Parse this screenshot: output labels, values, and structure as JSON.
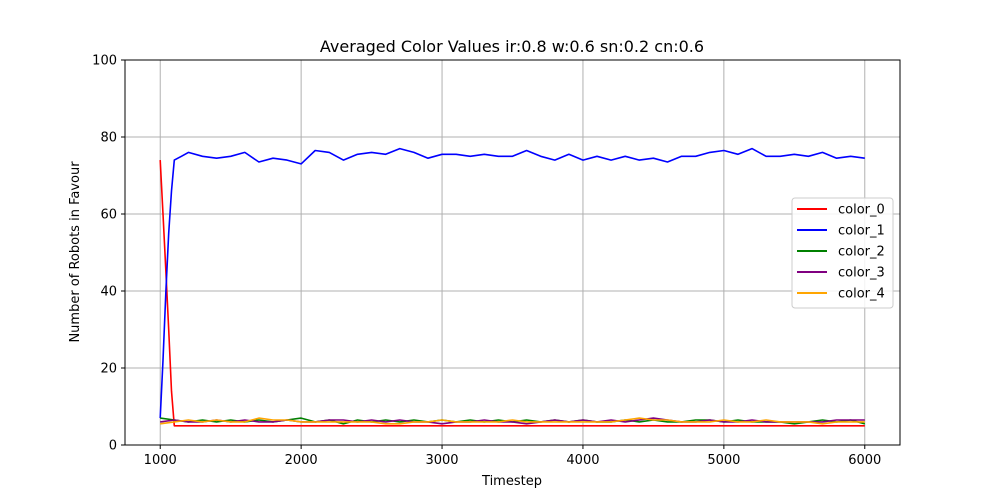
{
  "chart_data": {
    "type": "line",
    "title": "Averaged Color Values ir:0.8 w:0.6 sn:0.2 cn:0.6",
    "xlabel": "Timestep",
    "ylabel": "Number of Robots in Favour",
    "xlim": [
      750,
      6250
    ],
    "ylim": [
      0,
      100
    ],
    "xticks": [
      1000,
      2000,
      3000,
      4000,
      5000,
      6000
    ],
    "yticks": [
      0,
      20,
      40,
      60,
      80,
      100
    ],
    "grid": true,
    "legend_position": "center-right",
    "series": [
      {
        "name": "color_0",
        "color": "#ff0000",
        "x": [
          1000,
          1020,
          1040,
          1060,
          1080,
          1100,
          6000
        ],
        "y": [
          74,
          60,
          45,
          30,
          14,
          5,
          5
        ]
      },
      {
        "name": "color_1",
        "color": "#0000ff",
        "x": [
          1000,
          1020,
          1040,
          1060,
          1080,
          1100,
          1150,
          1200,
          1300,
          1400,
          1500,
          1600,
          1700,
          1800,
          1900,
          2000,
          2100,
          2200,
          2300,
          2400,
          2500,
          2600,
          2700,
          2800,
          2900,
          3000,
          3100,
          3200,
          3300,
          3400,
          3500,
          3600,
          3700,
          3800,
          3900,
          4000,
          4100,
          4200,
          4300,
          4400,
          4500,
          4600,
          4700,
          4800,
          4900,
          5000,
          5100,
          5200,
          5300,
          5400,
          5500,
          5600,
          5700,
          5800,
          5900,
          6000
        ],
        "y": [
          7,
          22,
          40,
          55,
          66,
          74,
          75,
          76,
          75,
          74.5,
          75,
          76,
          73.5,
          74.5,
          74,
          73,
          76.5,
          76,
          74,
          75.5,
          76,
          75.5,
          77,
          76,
          74.5,
          75.5,
          75.5,
          75,
          75.5,
          75,
          75,
          76.5,
          75,
          74,
          75.5,
          74,
          75,
          74,
          75,
          74,
          74.5,
          73.5,
          75,
          75,
          76,
          76.5,
          75.5,
          77,
          75,
          75,
          75.5,
          75,
          76,
          74.5,
          75,
          74.5
        ]
      },
      {
        "name": "color_2",
        "color": "#008000",
        "x": [
          1000,
          1100,
          1200,
          1300,
          1400,
          1500,
          1600,
          1700,
          1800,
          1900,
          2000,
          2100,
          2200,
          2300,
          2400,
          2500,
          2600,
          2700,
          2800,
          2900,
          3000,
          3100,
          3200,
          3300,
          3400,
          3500,
          3600,
          3700,
          3800,
          3900,
          4000,
          4100,
          4200,
          4300,
          4400,
          4500,
          4600,
          4700,
          4800,
          4900,
          5000,
          5100,
          5200,
          5300,
          5400,
          5500,
          5600,
          5700,
          5800,
          5900,
          6000
        ],
        "y": [
          7,
          6.5,
          6,
          6.5,
          6,
          6.5,
          6,
          6.5,
          6,
          6.5,
          7,
          6,
          6.5,
          5.5,
          6.5,
          6,
          6.5,
          6,
          6.5,
          6,
          6.5,
          6,
          6.5,
          6,
          6.5,
          6,
          6.5,
          6,
          6.5,
          6,
          6.5,
          6,
          6,
          6.5,
          6,
          6.5,
          6,
          6,
          6.5,
          6.5,
          6,
          6.5,
          6,
          6,
          6,
          5.5,
          6,
          6.5,
          6,
          6.5,
          5.5
        ]
      },
      {
        "name": "color_3",
        "color": "#800080",
        "x": [
          1000,
          1100,
          1200,
          1300,
          1400,
          1500,
          1600,
          1700,
          1800,
          1900,
          2000,
          2100,
          2200,
          2300,
          2400,
          2500,
          2600,
          2700,
          2800,
          2900,
          3000,
          3100,
          3200,
          3300,
          3400,
          3500,
          3600,
          3700,
          3800,
          3900,
          4000,
          4100,
          4200,
          4300,
          4400,
          4500,
          4600,
          4700,
          4800,
          4900,
          5000,
          5100,
          5200,
          5300,
          5400,
          5500,
          5600,
          5700,
          5800,
          5900,
          6000
        ],
        "y": [
          6,
          6.5,
          6,
          6,
          6.5,
          6,
          6.5,
          6,
          6,
          6.5,
          6,
          6,
          6.5,
          6.5,
          6,
          6.5,
          6,
          6.5,
          6,
          6,
          5.5,
          6,
          6,
          6.5,
          6,
          6,
          5.5,
          6,
          6.5,
          6,
          6.5,
          6,
          6.5,
          6,
          6.5,
          7,
          6.5,
          6,
          6,
          6.5,
          6,
          6,
          6.5,
          6,
          6,
          6,
          6,
          6,
          6.5,
          6.5,
          6.5
        ]
      },
      {
        "name": "color_4",
        "color": "#ffa500",
        "x": [
          1000,
          1100,
          1200,
          1300,
          1400,
          1500,
          1600,
          1700,
          1800,
          1900,
          2000,
          2100,
          2200,
          2300,
          2400,
          2500,
          2600,
          2700,
          2800,
          2900,
          3000,
          3100,
          3200,
          3300,
          3400,
          3500,
          3600,
          3700,
          3800,
          3900,
          4000,
          4100,
          4200,
          4300,
          4400,
          4500,
          4600,
          4700,
          4800,
          4900,
          5000,
          5100,
          5200,
          5300,
          5400,
          5500,
          5600,
          5700,
          5800,
          5900,
          6000
        ],
        "y": [
          5.5,
          6,
          6.5,
          6,
          6.5,
          6,
          6,
          7,
          6.5,
          6.5,
          6,
          6,
          6,
          6,
          6,
          6,
          5.5,
          5.5,
          6,
          6,
          6.5,
          6,
          6,
          6,
          6,
          6.5,
          6,
          6,
          6,
          6,
          6,
          6,
          6,
          6.5,
          7,
          6.5,
          6.5,
          6,
          6,
          6,
          6.5,
          6,
          6,
          6.5,
          6,
          6,
          6,
          5.5,
          6,
          6,
          6
        ]
      }
    ]
  }
}
